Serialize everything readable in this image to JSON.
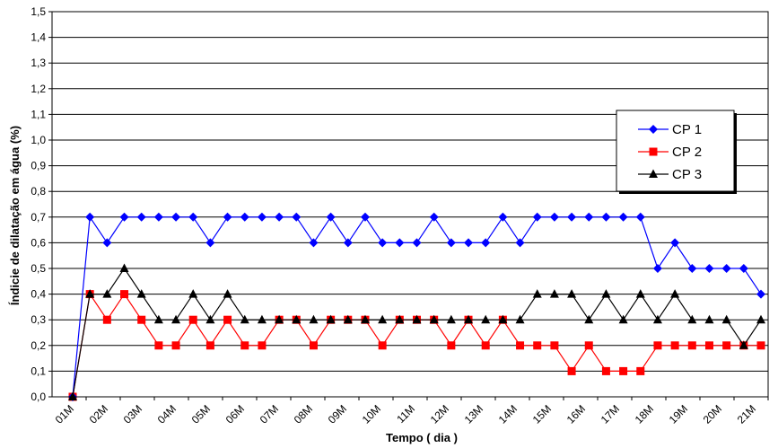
{
  "chart_data": {
    "type": "line",
    "title": "",
    "xlabel": "Tempo ( dia )",
    "ylabel": "Índicie de dilatação em água (%)",
    "ylim": [
      0,
      1.5
    ],
    "yticks": [
      "0,0",
      "0,1",
      "0,2",
      "0,3",
      "0,4",
      "0,5",
      "0,6",
      "0,7",
      "0,8",
      "0,9",
      "1,0",
      "1,1",
      "1,2",
      "1,3",
      "1,4",
      "1,5"
    ],
    "xtick_labels": [
      "01M",
      "02M",
      "03M",
      "04M",
      "05M",
      "06M",
      "07M",
      "08M",
      "09M",
      "10M",
      "11M",
      "12M",
      "13M",
      "14M",
      "15M",
      "16M",
      "17M",
      "18M",
      "19M",
      "20M",
      "21M"
    ],
    "grid": true,
    "legend_position": "right",
    "series": [
      {
        "name": "CP 1",
        "color": "#0000ff",
        "marker": "diamond",
        "values": [
          0,
          0.7,
          0.6,
          0.7,
          0.7,
          0.7,
          0.7,
          0.7,
          0.6,
          0.7,
          0.7,
          0.7,
          0.7,
          0.7,
          0.6,
          0.7,
          0.6,
          0.7,
          0.6,
          0.6,
          0.6,
          0.7,
          0.6,
          0.6,
          0.6,
          0.7,
          0.6,
          0.7,
          0.7,
          0.7,
          0.7,
          0.7,
          0.7,
          0.7,
          0.5,
          0.6,
          0.5,
          0.5,
          0.5,
          0.5,
          0.4
        ]
      },
      {
        "name": "CP 2",
        "color": "#ff0000",
        "marker": "square",
        "values": [
          0,
          0.4,
          0.3,
          0.4,
          0.3,
          0.2,
          0.2,
          0.3,
          0.2,
          0.3,
          0.2,
          0.2,
          0.3,
          0.3,
          0.2,
          0.3,
          0.3,
          0.3,
          0.2,
          0.3,
          0.3,
          0.3,
          0.2,
          0.3,
          0.2,
          0.3,
          0.2,
          0.2,
          0.2,
          0.1,
          0.2,
          0.1,
          0.1,
          0.1,
          0.2,
          0.2,
          0.2,
          0.2,
          0.2,
          0.2,
          0.2
        ]
      },
      {
        "name": "CP 3",
        "color": "#000000",
        "marker": "triangle",
        "values": [
          0,
          0.4,
          0.4,
          0.5,
          0.4,
          0.3,
          0.3,
          0.4,
          0.3,
          0.4,
          0.3,
          0.3,
          0.3,
          0.3,
          0.3,
          0.3,
          0.3,
          0.3,
          0.3,
          0.3,
          0.3,
          0.3,
          0.3,
          0.3,
          0.3,
          0.3,
          0.3,
          0.4,
          0.4,
          0.4,
          0.3,
          0.4,
          0.3,
          0.4,
          0.3,
          0.4,
          0.3,
          0.3,
          0.3,
          0.2,
          0.3
        ]
      }
    ]
  }
}
